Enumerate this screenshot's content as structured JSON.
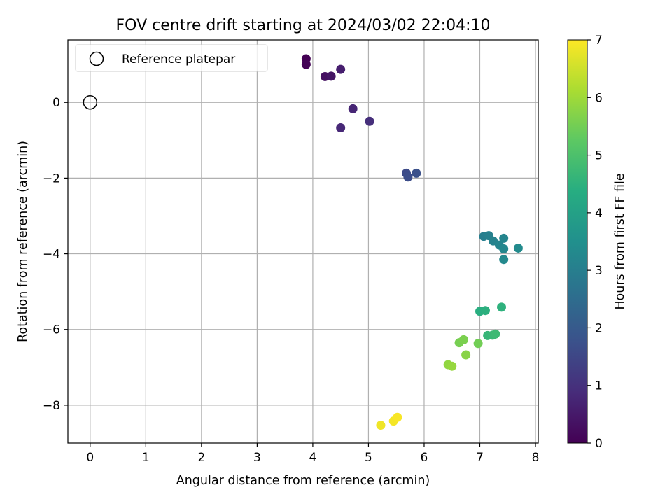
{
  "chart_data": {
    "type": "scatter",
    "title": "FOV centre drift starting at 2024/03/02 22:04:10",
    "xlabel": "Angular distance from reference (arcmin)",
    "ylabel": "Rotation from reference (arcmin)",
    "xlim": [
      -0.4,
      8.05
    ],
    "ylim": [
      -9.0,
      1.65
    ],
    "xticks": [
      0,
      1,
      2,
      3,
      4,
      5,
      6,
      7,
      8
    ],
    "yticks": [
      0,
      -2,
      -4,
      -6,
      -8
    ],
    "grid": true,
    "legend": {
      "placement": "top-left",
      "entries": [
        "Reference platepar"
      ]
    },
    "reference_point": {
      "x": 0,
      "y": 0,
      "marker": "open-circle"
    },
    "colorbar": {
      "label": "Hours from first FF file",
      "range": [
        0,
        7
      ],
      "ticks": [
        0,
        1,
        2,
        3,
        4,
        5,
        6,
        7
      ],
      "colormap": "viridis"
    },
    "points": [
      {
        "x": 3.88,
        "y": 1.15,
        "c": 0.0
      },
      {
        "x": 3.88,
        "y": 1.0,
        "c": 0.05
      },
      {
        "x": 4.22,
        "y": 0.68,
        "c": 0.3
      },
      {
        "x": 4.33,
        "y": 0.69,
        "c": 0.4
      },
      {
        "x": 4.5,
        "y": 0.87,
        "c": 0.6
      },
      {
        "x": 4.72,
        "y": -0.17,
        "c": 0.75
      },
      {
        "x": 4.5,
        "y": -0.67,
        "c": 0.8
      },
      {
        "x": 5.02,
        "y": -0.5,
        "c": 0.95
      },
      {
        "x": 5.68,
        "y": -1.87,
        "c": 1.6
      },
      {
        "x": 5.71,
        "y": -1.97,
        "c": 1.65
      },
      {
        "x": 5.86,
        "y": -1.87,
        "c": 1.75
      },
      {
        "x": 7.07,
        "y": -3.54,
        "c": 3.0
      },
      {
        "x": 7.16,
        "y": -3.52,
        "c": 3.05
      },
      {
        "x": 7.24,
        "y": -3.66,
        "c": 3.1
      },
      {
        "x": 7.35,
        "y": -3.77,
        "c": 3.15
      },
      {
        "x": 7.43,
        "y": -3.59,
        "c": 3.2
      },
      {
        "x": 7.43,
        "y": -3.87,
        "c": 3.25
      },
      {
        "x": 7.43,
        "y": -4.15,
        "c": 3.3
      },
      {
        "x": 7.69,
        "y": -3.85,
        "c": 3.35
      },
      {
        "x": 7.0,
        "y": -5.52,
        "c": 4.4
      },
      {
        "x": 7.1,
        "y": -5.5,
        "c": 4.45
      },
      {
        "x": 7.39,
        "y": -5.41,
        "c": 4.5
      },
      {
        "x": 7.14,
        "y": -6.16,
        "c": 4.65
      },
      {
        "x": 7.23,
        "y": -6.15,
        "c": 4.7
      },
      {
        "x": 7.28,
        "y": -6.12,
        "c": 4.75
      },
      {
        "x": 6.97,
        "y": -6.37,
        "c": 5.5
      },
      {
        "x": 6.63,
        "y": -6.35,
        "c": 5.55
      },
      {
        "x": 6.71,
        "y": -6.27,
        "c": 5.6
      },
      {
        "x": 6.75,
        "y": -6.67,
        "c": 5.75
      },
      {
        "x": 6.43,
        "y": -6.93,
        "c": 5.85
      },
      {
        "x": 6.5,
        "y": -6.97,
        "c": 5.9
      },
      {
        "x": 5.22,
        "y": -8.53,
        "c": 6.85
      },
      {
        "x": 5.45,
        "y": -8.42,
        "c": 6.9
      },
      {
        "x": 5.52,
        "y": -8.32,
        "c": 6.95
      }
    ]
  },
  "labels": {
    "xtick_labels": [
      "0",
      "1",
      "2",
      "3",
      "4",
      "5",
      "6",
      "7",
      "8"
    ],
    "ytick_labels": [
      "0",
      "−2",
      "−4",
      "−6",
      "−8"
    ],
    "cbar_tick_labels": [
      "0",
      "1",
      "2",
      "3",
      "4",
      "5",
      "6",
      "7"
    ]
  }
}
